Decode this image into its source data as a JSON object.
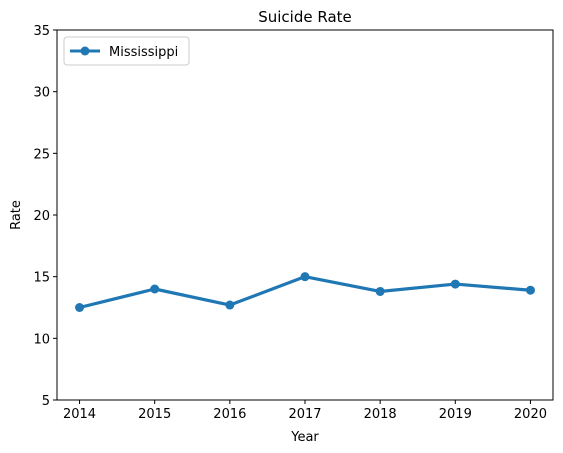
{
  "chart_data": {
    "type": "line",
    "title": "Suicide Rate",
    "xlabel": "Year",
    "ylabel": "Rate",
    "x": [
      2014,
      2015,
      2016,
      2017,
      2018,
      2019,
      2020
    ],
    "series": [
      {
        "name": "Mississippi",
        "color": "#1f77b4",
        "values": [
          12.5,
          14.0,
          12.7,
          15.0,
          13.8,
          14.4,
          13.9
        ]
      }
    ],
    "xticks": [
      "2014",
      "2015",
      "2016",
      "2017",
      "2018",
      "2019",
      "2020"
    ],
    "yticks": [
      5,
      10,
      15,
      20,
      25,
      30,
      35
    ],
    "ylim": [
      5,
      35
    ],
    "xlim": [
      2013.7,
      2020.3
    ],
    "grid": false,
    "legend_position": "top-left"
  }
}
